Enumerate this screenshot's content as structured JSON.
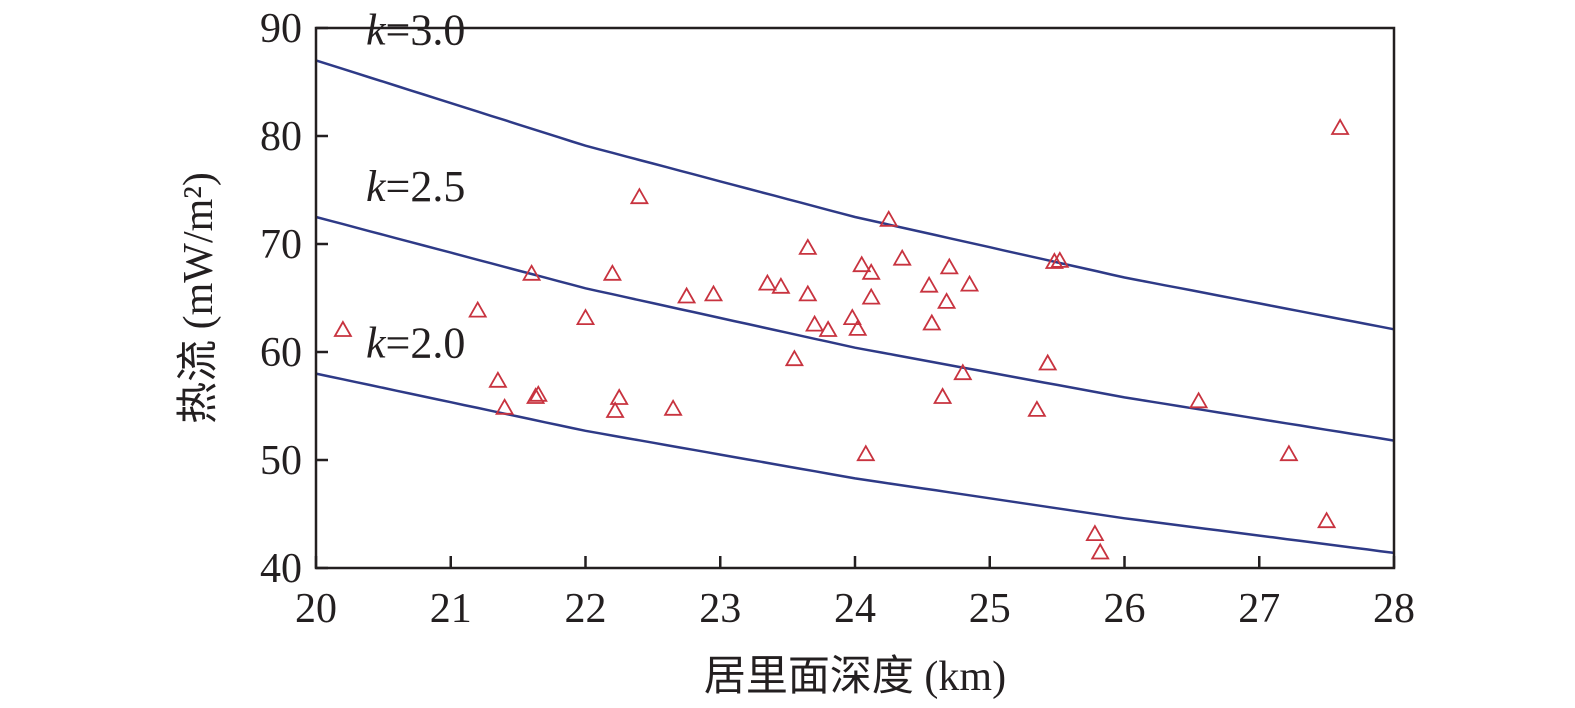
{
  "chart_data": {
    "type": "scatter",
    "xlabel": "居里面深度 (km)",
    "ylabel": "热流 (mW/m²)",
    "xlim": [
      20,
      28
    ],
    "ylim": [
      40,
      90
    ],
    "x_ticks": [
      "20",
      "21",
      "22",
      "23",
      "24",
      "25",
      "26",
      "27",
      "28"
    ],
    "y_ticks": [
      "40",
      "50",
      "60",
      "70",
      "80",
      "90"
    ],
    "grid": false,
    "colors": {
      "points": "#c8333f",
      "curves": "#2e3a87",
      "axes": "#231f20"
    },
    "marker": "open-triangle",
    "curves": [
      {
        "k": "3.0",
        "label_prefix": "k",
        "label_suffix": "=3.0",
        "x": [
          20,
          22,
          24,
          26,
          28
        ],
        "y": [
          87.0,
          79.1,
          72.5,
          66.9,
          62.1
        ]
      },
      {
        "k": "2.5",
        "label_prefix": "k",
        "label_suffix": "=2.5",
        "x": [
          20,
          22,
          24,
          26,
          28
        ],
        "y": [
          72.5,
          65.9,
          60.4,
          55.8,
          51.8
        ]
      },
      {
        "k": "2.0",
        "label_prefix": "k",
        "label_suffix": "=2.0",
        "x": [
          20,
          22,
          24,
          26,
          28
        ],
        "y": [
          58.0,
          52.7,
          48.3,
          44.6,
          41.4
        ]
      }
    ],
    "points": [
      {
        "x": 20.2,
        "y": 62.0
      },
      {
        "x": 21.2,
        "y": 63.8
      },
      {
        "x": 21.35,
        "y": 57.3
      },
      {
        "x": 21.4,
        "y": 54.8
      },
      {
        "x": 21.6,
        "y": 67.2
      },
      {
        "x": 21.63,
        "y": 55.8
      },
      {
        "x": 21.65,
        "y": 56.0
      },
      {
        "x": 22.0,
        "y": 63.1
      },
      {
        "x": 22.2,
        "y": 67.2
      },
      {
        "x": 22.22,
        "y": 54.5
      },
      {
        "x": 22.25,
        "y": 55.7
      },
      {
        "x": 22.4,
        "y": 74.3
      },
      {
        "x": 22.65,
        "y": 54.7
      },
      {
        "x": 22.75,
        "y": 65.1
      },
      {
        "x": 22.95,
        "y": 65.3
      },
      {
        "x": 23.35,
        "y": 66.3
      },
      {
        "x": 23.45,
        "y": 66.0
      },
      {
        "x": 23.55,
        "y": 59.3
      },
      {
        "x": 23.65,
        "y": 69.6
      },
      {
        "x": 23.65,
        "y": 65.3
      },
      {
        "x": 23.7,
        "y": 62.5
      },
      {
        "x": 23.8,
        "y": 62.0
      },
      {
        "x": 23.98,
        "y": 63.1
      },
      {
        "x": 24.02,
        "y": 62.1
      },
      {
        "x": 24.05,
        "y": 68.0
      },
      {
        "x": 24.08,
        "y": 50.5
      },
      {
        "x": 24.12,
        "y": 67.3
      },
      {
        "x": 24.12,
        "y": 65.0
      },
      {
        "x": 24.25,
        "y": 72.2
      },
      {
        "x": 24.35,
        "y": 68.6
      },
      {
        "x": 24.55,
        "y": 66.1
      },
      {
        "x": 24.57,
        "y": 62.6
      },
      {
        "x": 24.65,
        "y": 55.8
      },
      {
        "x": 24.68,
        "y": 64.6
      },
      {
        "x": 24.7,
        "y": 67.8
      },
      {
        "x": 24.8,
        "y": 58.0
      },
      {
        "x": 24.85,
        "y": 66.2
      },
      {
        "x": 25.35,
        "y": 54.6
      },
      {
        "x": 25.43,
        "y": 58.9
      },
      {
        "x": 25.48,
        "y": 68.3
      },
      {
        "x": 25.52,
        "y": 68.4
      },
      {
        "x": 25.78,
        "y": 43.1
      },
      {
        "x": 25.82,
        "y": 41.4
      },
      {
        "x": 26.55,
        "y": 55.4
      },
      {
        "x": 27.22,
        "y": 50.5
      },
      {
        "x": 27.5,
        "y": 44.3
      },
      {
        "x": 27.6,
        "y": 80.7
      }
    ]
  }
}
